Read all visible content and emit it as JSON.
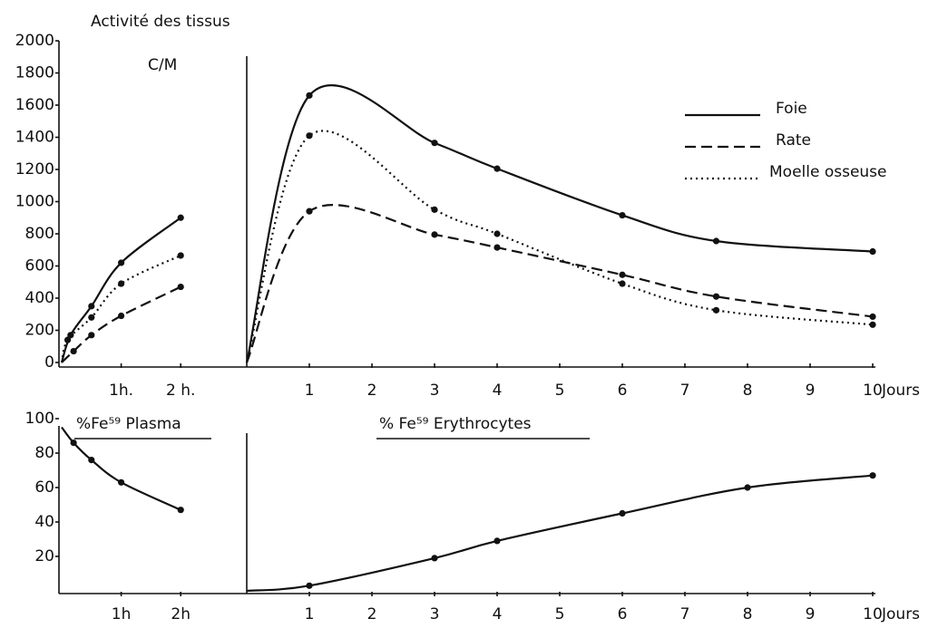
{
  "chart_data": [
    {
      "type": "line",
      "title": "Activité des tissus",
      "ylabel": "C/M",
      "xlim": [
        0,
        2.5
      ],
      "xticks": [
        {
          "value": 1,
          "label": "1h."
        },
        {
          "value": 2,
          "label": "2 h."
        }
      ],
      "ylim": [
        0,
        2000
      ],
      "yticks": [
        0,
        200,
        400,
        600,
        800,
        1000,
        1200,
        1400,
        1600,
        1800,
        2000
      ],
      "series": [
        {
          "name": "Foie",
          "color": "#111111",
          "dash": "solid",
          "x": [
            0,
            0.15,
            0.5,
            1,
            2
          ],
          "values": [
            0,
            170,
            350,
            620,
            900
          ]
        },
        {
          "name": "Rate",
          "color": "#111111",
          "dash": "dashed",
          "x": [
            0,
            0.2,
            0.5,
            1,
            2
          ],
          "values": [
            0,
            70,
            170,
            290,
            470
          ]
        },
        {
          "name": "Moelle osseuse",
          "color": "#111111",
          "dash": "dotted",
          "x": [
            0,
            0.1,
            0.5,
            1,
            2
          ],
          "values": [
            0,
            140,
            280,
            490,
            665
          ]
        }
      ]
    },
    {
      "type": "line",
      "xlabel": "Jours",
      "legend": "upper right",
      "xlim": [
        0,
        10
      ],
      "xticks": [
        1,
        2,
        3,
        4,
        5,
        6,
        7,
        8,
        9,
        10
      ],
      "ylim": [
        0,
        2000
      ],
      "series": [
        {
          "name": "Foie",
          "color": "#111111",
          "dash": "solid",
          "x": [
            0,
            1,
            3,
            4,
            6,
            7.5,
            10
          ],
          "values": [
            0,
            1660,
            1365,
            1205,
            915,
            755,
            690
          ]
        },
        {
          "name": "Rate",
          "color": "#111111",
          "dash": "dashed",
          "x": [
            0,
            1,
            3,
            4,
            6,
            7.5,
            10
          ],
          "values": [
            0,
            940,
            795,
            715,
            545,
            410,
            285
          ]
        },
        {
          "name": "Moelle osseuse",
          "color": "#111111",
          "dash": "dotted",
          "x": [
            0,
            1,
            3,
            4,
            6,
            7.5,
            10
          ],
          "values": [
            0,
            1410,
            950,
            800,
            490,
            325,
            235
          ]
        }
      ]
    },
    {
      "type": "line",
      "title": "%Fe⁵⁹ Plasma",
      "xlim": [
        0,
        2.5
      ],
      "xticks": [
        {
          "value": 1,
          "label": "1h"
        },
        {
          "value": 2,
          "label": "2h"
        }
      ],
      "ylim": [
        0,
        100
      ],
      "yticks": [
        20,
        40,
        60,
        80,
        100
      ],
      "series": [
        {
          "name": "Plasma",
          "color": "#111111",
          "dash": "solid",
          "x": [
            0,
            0.2,
            0.5,
            1,
            2
          ],
          "values": [
            95,
            86,
            76,
            63,
            47
          ]
        }
      ]
    },
    {
      "type": "line",
      "title": "% Fe⁵⁹ Erythrocytes",
      "xlabel": "Jours",
      "xlim": [
        0,
        10
      ],
      "xticks": [
        1,
        2,
        3,
        4,
        5,
        6,
        7,
        8,
        9,
        10
      ],
      "ylim": [
        0,
        100
      ],
      "series": [
        {
          "name": "Erythrocytes",
          "color": "#111111",
          "dash": "solid",
          "x": [
            0,
            1,
            3,
            4,
            6,
            8,
            10
          ],
          "values": [
            0,
            3,
            19,
            29,
            45,
            60,
            67
          ]
        }
      ]
    }
  ]
}
